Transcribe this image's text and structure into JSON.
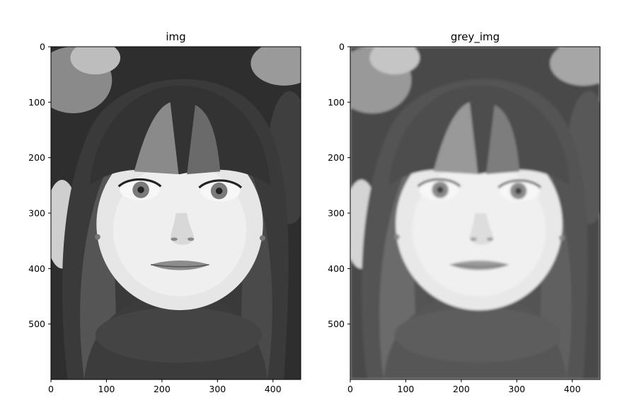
{
  "figure": {
    "panels": [
      {
        "title": "img",
        "image_subject": "portrait-photo",
        "x_ticks": [
          "0",
          "100",
          "200",
          "300",
          "400"
        ],
        "y_ticks": [
          "0",
          "100",
          "200",
          "300",
          "400",
          "500"
        ],
        "tone": "grayscale-sharp"
      },
      {
        "title": "grey_img",
        "image_subject": "portrait-photo",
        "x_ticks": [
          "0",
          "100",
          "200",
          "300",
          "400"
        ],
        "y_ticks": [
          "0",
          "100",
          "200",
          "300",
          "400",
          "500"
        ],
        "tone": "grayscale-soft"
      }
    ],
    "image_size": {
      "width": 450,
      "height": 600
    },
    "colors": {
      "background": "#ffffff",
      "frame": "#000000"
    }
  }
}
